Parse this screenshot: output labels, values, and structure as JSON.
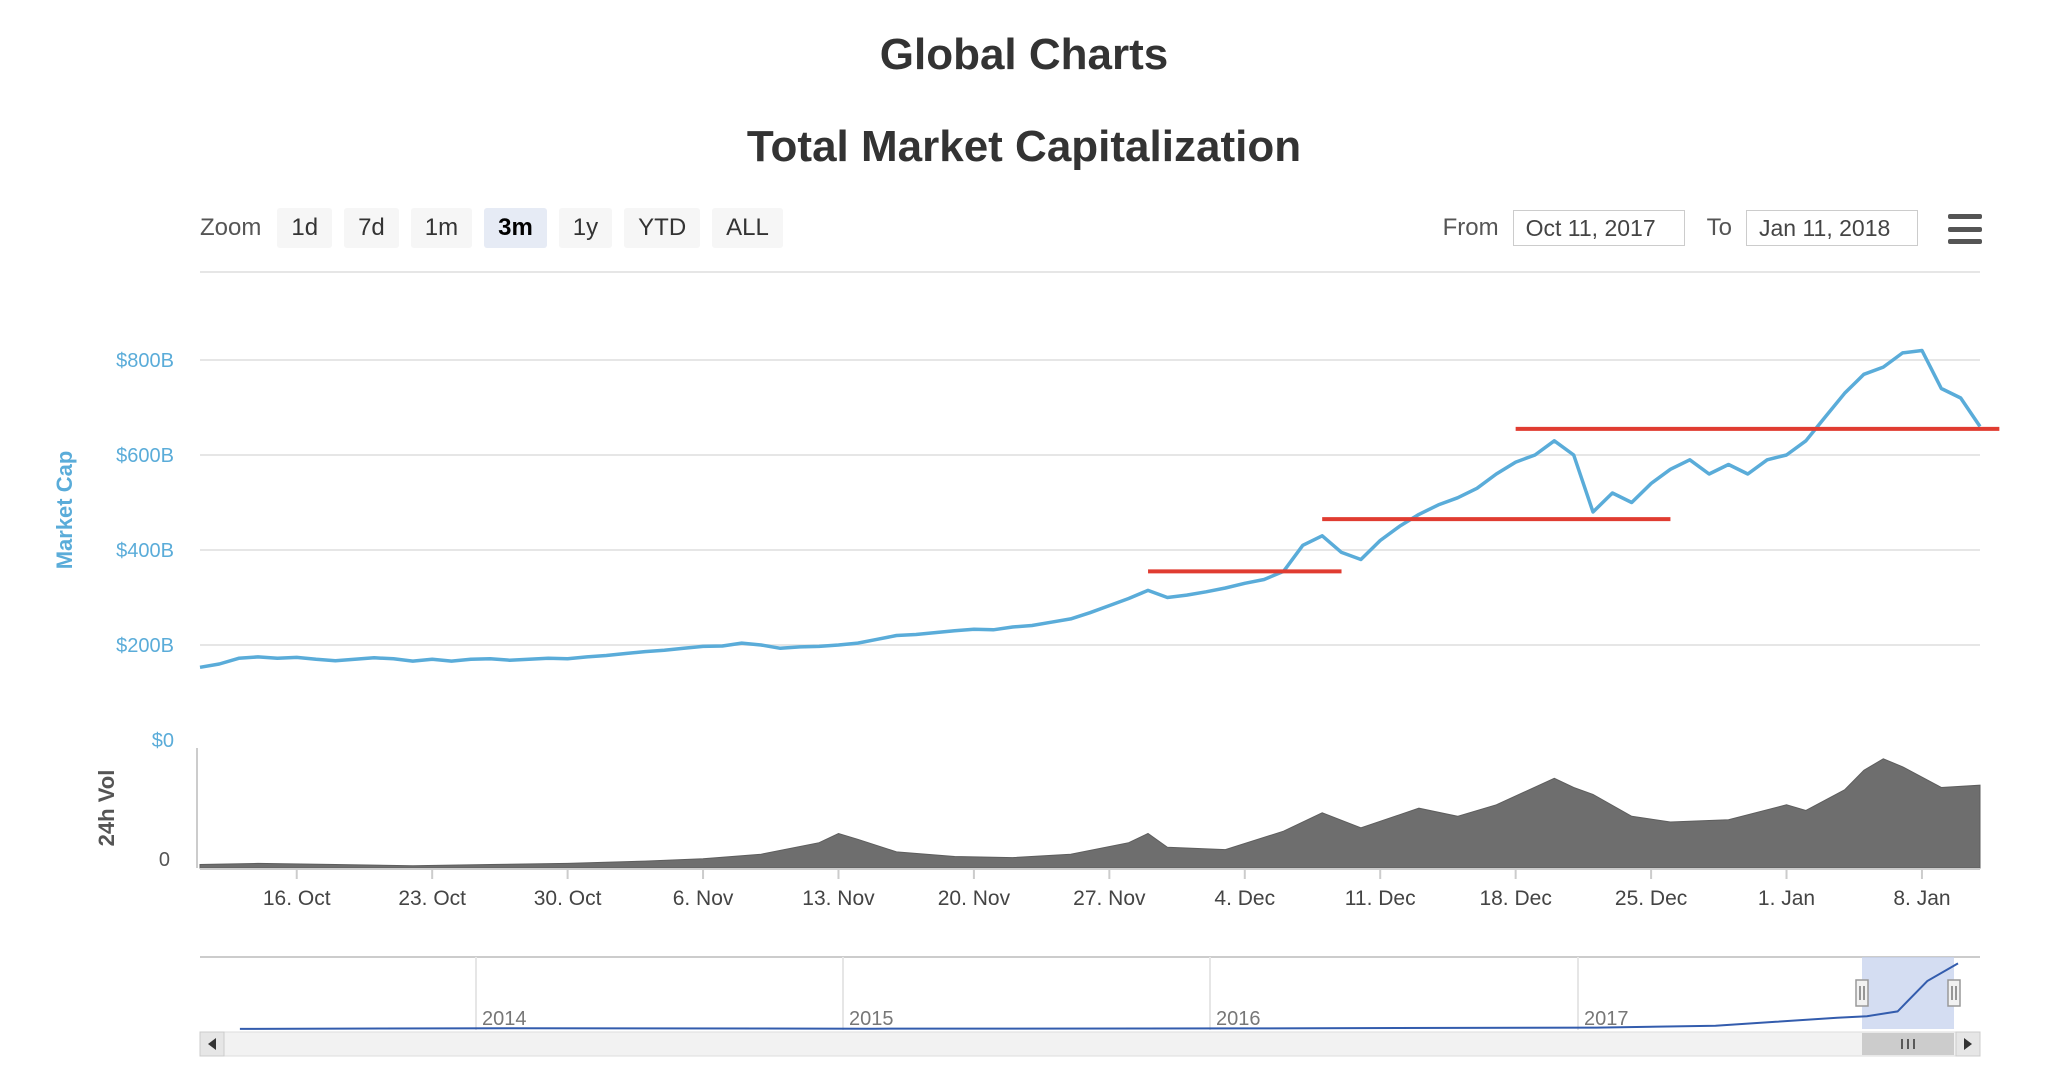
{
  "page": {
    "title": "Global Charts"
  },
  "toolbar": {
    "zoom_label": "Zoom",
    "zoom_buttons": [
      "1d",
      "7d",
      "1m",
      "3m",
      "1y",
      "YTD",
      "ALL"
    ],
    "active_zoom": "3m",
    "from_label": "From",
    "from_value": "Oct 11, 2017",
    "to_label": "To",
    "to_value": "Jan 11, 2018",
    "menu_icon": "hamburger-menu-icon"
  },
  "chart_data": {
    "type": "line",
    "title": "Total Market Capitalization",
    "ylabel": "Market Cap",
    "ylabel_volume": "24h Vol",
    "ylim": [
      0,
      950
    ],
    "y_ticks": [
      {
        "value": 0,
        "label": "$0"
      },
      {
        "value": 200,
        "label": "$200B"
      },
      {
        "value": 400,
        "label": "$400B"
      },
      {
        "value": 600,
        "label": "$600B"
      },
      {
        "value": 800,
        "label": "$800B"
      }
    ],
    "volume_tick_label": "0",
    "x_range": [
      "2017-10-11",
      "2018-01-11"
    ],
    "x_ticks": [
      {
        "date": "2017-10-16",
        "label": "16. Oct"
      },
      {
        "date": "2017-10-23",
        "label": "23. Oct"
      },
      {
        "date": "2017-10-30",
        "label": "30. Oct"
      },
      {
        "date": "2017-11-06",
        "label": "6. Nov"
      },
      {
        "date": "2017-11-13",
        "label": "13. Nov"
      },
      {
        "date": "2017-11-20",
        "label": "20. Nov"
      },
      {
        "date": "2017-11-27",
        "label": "27. Nov"
      },
      {
        "date": "2017-12-04",
        "label": "4. Dec"
      },
      {
        "date": "2017-12-11",
        "label": "11. Dec"
      },
      {
        "date": "2017-12-18",
        "label": "18. Dec"
      },
      {
        "date": "2017-12-25",
        "label": "25. Dec"
      },
      {
        "date": "2018-01-01",
        "label": "1. Jan"
      },
      {
        "date": "2018-01-08",
        "label": "8. Jan"
      }
    ],
    "series": [
      {
        "name": "Market Cap",
        "color": "#5aacd9",
        "points": [
          [
            "2017-10-11",
            153
          ],
          [
            "2017-10-12",
            160
          ],
          [
            "2017-10-13",
            172
          ],
          [
            "2017-10-14",
            175
          ],
          [
            "2017-10-15",
            172
          ],
          [
            "2017-10-16",
            174
          ],
          [
            "2017-10-17",
            170
          ],
          [
            "2017-10-18",
            167
          ],
          [
            "2017-10-19",
            170
          ],
          [
            "2017-10-20",
            173
          ],
          [
            "2017-10-21",
            171
          ],
          [
            "2017-10-22",
            166
          ],
          [
            "2017-10-23",
            170
          ],
          [
            "2017-10-24",
            166
          ],
          [
            "2017-10-25",
            170
          ],
          [
            "2017-10-26",
            171
          ],
          [
            "2017-10-27",
            168
          ],
          [
            "2017-10-28",
            170
          ],
          [
            "2017-10-29",
            172
          ],
          [
            "2017-10-30",
            171
          ],
          [
            "2017-10-31",
            175
          ],
          [
            "2017-11-01",
            178
          ],
          [
            "2017-11-02",
            182
          ],
          [
            "2017-11-03",
            186
          ],
          [
            "2017-11-04",
            189
          ],
          [
            "2017-11-05",
            193
          ],
          [
            "2017-11-06",
            197
          ],
          [
            "2017-11-07",
            198
          ],
          [
            "2017-11-08",
            204
          ],
          [
            "2017-11-09",
            200
          ],
          [
            "2017-11-10",
            193
          ],
          [
            "2017-11-11",
            196
          ],
          [
            "2017-11-12",
            197
          ],
          [
            "2017-11-13",
            200
          ],
          [
            "2017-11-14",
            204
          ],
          [
            "2017-11-15",
            212
          ],
          [
            "2017-11-16",
            220
          ],
          [
            "2017-11-17",
            222
          ],
          [
            "2017-11-18",
            226
          ],
          [
            "2017-11-19",
            230
          ],
          [
            "2017-11-20",
            233
          ],
          [
            "2017-11-21",
            232
          ],
          [
            "2017-11-22",
            238
          ],
          [
            "2017-11-23",
            241
          ],
          [
            "2017-11-24",
            248
          ],
          [
            "2017-11-25",
            255
          ],
          [
            "2017-11-26",
            268
          ],
          [
            "2017-11-27",
            283
          ],
          [
            "2017-11-28",
            298
          ],
          [
            "2017-11-29",
            315
          ],
          [
            "2017-11-30",
            300
          ],
          [
            "2017-12-01",
            305
          ],
          [
            "2017-12-02",
            312
          ],
          [
            "2017-12-03",
            320
          ],
          [
            "2017-12-04",
            330
          ],
          [
            "2017-12-05",
            338
          ],
          [
            "2017-12-06",
            355
          ],
          [
            "2017-12-07",
            410
          ],
          [
            "2017-12-08",
            430
          ],
          [
            "2017-12-09",
            395
          ],
          [
            "2017-12-10",
            380
          ],
          [
            "2017-12-11",
            420
          ],
          [
            "2017-12-12",
            450
          ],
          [
            "2017-12-13",
            475
          ],
          [
            "2017-12-14",
            495
          ],
          [
            "2017-12-15",
            510
          ],
          [
            "2017-12-16",
            530
          ],
          [
            "2017-12-17",
            560
          ],
          [
            "2017-12-18",
            585
          ],
          [
            "2017-12-19",
            600
          ],
          [
            "2017-12-20",
            630
          ],
          [
            "2017-12-21",
            600
          ],
          [
            "2017-12-22",
            480
          ],
          [
            "2017-12-23",
            520
          ],
          [
            "2017-12-24",
            500
          ],
          [
            "2017-12-25",
            540
          ],
          [
            "2017-12-26",
            570
          ],
          [
            "2017-12-27",
            590
          ],
          [
            "2017-12-28",
            560
          ],
          [
            "2017-12-29",
            580
          ],
          [
            "2017-12-30",
            560
          ],
          [
            "2017-12-31",
            590
          ],
          [
            "2018-01-01",
            600
          ],
          [
            "2018-01-02",
            630
          ],
          [
            "2018-01-03",
            680
          ],
          [
            "2018-01-04",
            730
          ],
          [
            "2018-01-05",
            770
          ],
          [
            "2018-01-06",
            785
          ],
          [
            "2018-01-07",
            815
          ],
          [
            "2018-01-08",
            820
          ],
          [
            "2018-01-09",
            740
          ],
          [
            "2018-01-10",
            720
          ],
          [
            "2018-01-11",
            660
          ]
        ]
      },
      {
        "name": "24h Vol",
        "color": "#6e6e6e",
        "points": [
          [
            "2017-10-11",
            3
          ],
          [
            "2017-10-14",
            4
          ],
          [
            "2017-10-18",
            3
          ],
          [
            "2017-10-22",
            2
          ],
          [
            "2017-10-26",
            3
          ],
          [
            "2017-10-30",
            4
          ],
          [
            "2017-11-03",
            6
          ],
          [
            "2017-11-06",
            8
          ],
          [
            "2017-11-09",
            12
          ],
          [
            "2017-11-12",
            22
          ],
          [
            "2017-11-13",
            30
          ],
          [
            "2017-11-14",
            25
          ],
          [
            "2017-11-16",
            14
          ],
          [
            "2017-11-19",
            10
          ],
          [
            "2017-11-22",
            9
          ],
          [
            "2017-11-25",
            12
          ],
          [
            "2017-11-28",
            22
          ],
          [
            "2017-11-29",
            30
          ],
          [
            "2017-11-30",
            18
          ],
          [
            "2017-12-03",
            16
          ],
          [
            "2017-12-06",
            32
          ],
          [
            "2017-12-08",
            48
          ],
          [
            "2017-12-10",
            35
          ],
          [
            "2017-12-13",
            52
          ],
          [
            "2017-12-15",
            45
          ],
          [
            "2017-12-17",
            55
          ],
          [
            "2017-12-20",
            78
          ],
          [
            "2017-12-21",
            70
          ],
          [
            "2017-12-22",
            64
          ],
          [
            "2017-12-24",
            45
          ],
          [
            "2017-12-26",
            40
          ],
          [
            "2017-12-29",
            42
          ],
          [
            "2018-01-01",
            55
          ],
          [
            "2018-01-02",
            50
          ],
          [
            "2018-01-04",
            68
          ],
          [
            "2018-01-05",
            85
          ],
          [
            "2018-01-06",
            95
          ],
          [
            "2018-01-07",
            88
          ],
          [
            "2018-01-09",
            70
          ],
          [
            "2018-01-11",
            72
          ]
        ]
      }
    ],
    "annotations": [
      {
        "type": "horizontal-line",
        "color": "#e03c31",
        "value": 355,
        "x_start": "2017-11-29",
        "x_end": "2017-12-09"
      },
      {
        "type": "horizontal-line",
        "color": "#e03c31",
        "value": 465,
        "x_start": "2017-12-08",
        "x_end": "2017-12-26"
      },
      {
        "type": "horizontal-line",
        "color": "#e03c31",
        "value": 655,
        "x_start": "2017-12-18",
        "x_end": "2018-01-12"
      }
    ],
    "navigator": {
      "year_labels": [
        "2014",
        "2015",
        "2016",
        "2017"
      ],
      "series_color": "#335cad",
      "selection_color": "#c5d2ee",
      "points": [
        [
          "2013-04",
          1
        ],
        [
          "2014-01",
          10
        ],
        [
          "2015-01",
          4
        ],
        [
          "2016-01",
          7
        ],
        [
          "2017-01",
          18
        ],
        [
          "2017-05",
          40
        ],
        [
          "2017-07",
          90
        ],
        [
          "2017-09",
          140
        ],
        [
          "2017-10",
          160
        ],
        [
          "2017-11",
          220
        ],
        [
          "2017-12",
          600
        ],
        [
          "2018-01",
          820
        ]
      ]
    },
    "grid": true,
    "legend": "none"
  }
}
